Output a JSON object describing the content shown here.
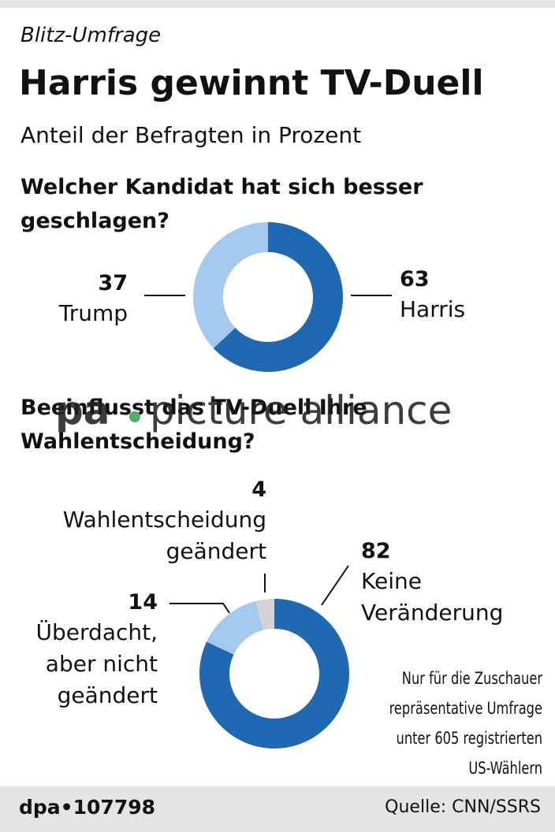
{
  "kicker": "Blitz-Umfrage",
  "title": "Harris gewinnt TV-Duell",
  "subtitle": "Anteil der Befragten in Prozent",
  "chart_data": [
    {
      "type": "pie",
      "donut": true,
      "title": "Welcher Kandidat hat sich besser\ngeschlagen?",
      "categories": [
        "Harris",
        "Trump"
      ],
      "values": [
        63,
        37
      ],
      "colors": [
        "#1f69b3",
        "#a4c9ee"
      ]
    },
    {
      "type": "pie",
      "donut": true,
      "title": "Beeinflusst das TV-Duell Ihre\nWahlentscheidung?",
      "categories": [
        "Keine\nVeränderung",
        "Überdacht,\naber nicht\ngeändert",
        "Wahlentscheidung\ngeändert"
      ],
      "values": [
        82,
        14,
        4
      ],
      "colors": [
        "#1f69b3",
        "#a4c9ee",
        "#d4d4d4"
      ]
    }
  ],
  "note": "Nur für die Zuschauer\nrepräsentative Umfrage\nunter 605 registrierten\nUS-Wählern",
  "watermark": [
    "pa",
    "picture alliance"
  ],
  "footer": {
    "id": "dpa•107798",
    "source": "Quelle: CNN/SSRS"
  }
}
